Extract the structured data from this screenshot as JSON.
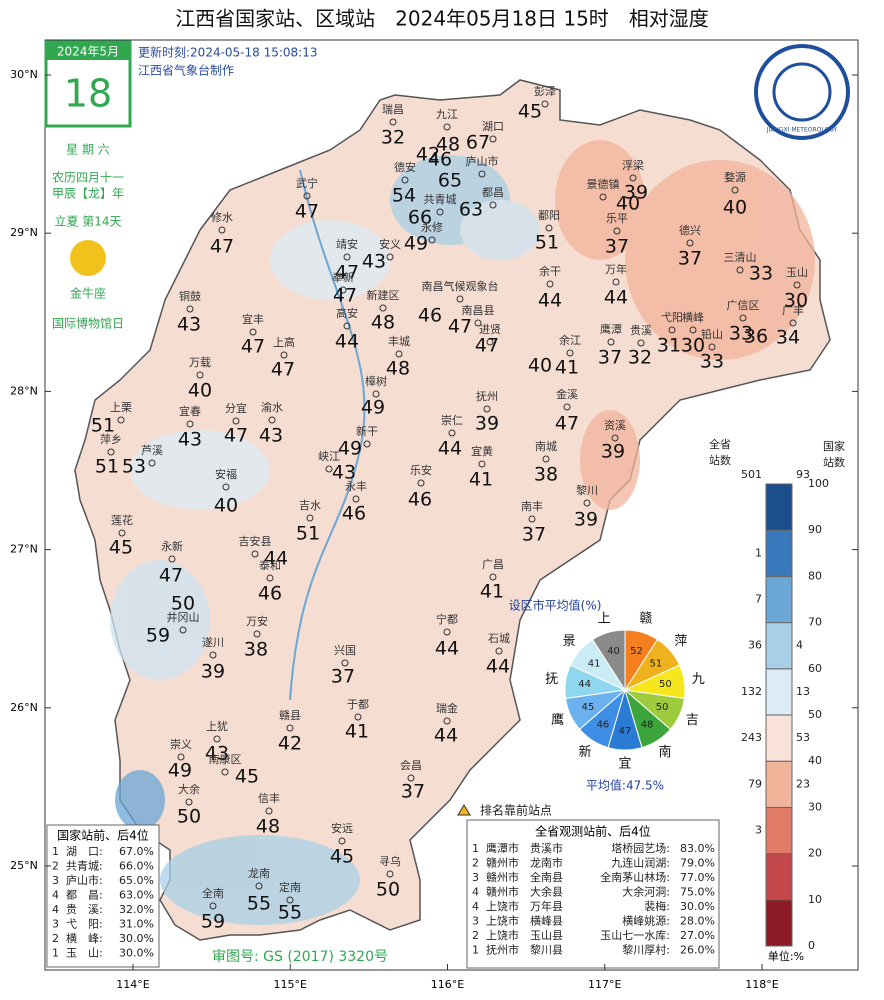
{
  "title": "江西省国家站、区域站　2024年05月18日 15时　相对湿度",
  "calendar": {
    "month": "2024年5月",
    "day": "18",
    "weekday": "星 期 六",
    "lunar": [
      "农历四月十一",
      "甲辰【龙】年"
    ],
    "solar_term": "立夏 第14天",
    "zodiac": "金牛座",
    "holiday": "国际博物馆日"
  },
  "update_time": "更新时刻:2024-05-18 15:08:13",
  "maker": "江西省气象台制作",
  "logo_text": "JIANGXI METEOROLOGY",
  "lat_ticks": [
    {
      "value": 30,
      "label": "30°N"
    },
    {
      "value": 29,
      "label": "29°N"
    },
    {
      "value": 28,
      "label": "28°N"
    },
    {
      "value": 27,
      "label": "27°N"
    },
    {
      "value": 26,
      "label": "26°N"
    },
    {
      "value": 25,
      "label": "25°N"
    }
  ],
  "lon_ticks": [
    {
      "value": 114,
      "label": "114°E"
    },
    {
      "value": 115,
      "label": "115°E"
    },
    {
      "value": 116,
      "label": "116°E"
    },
    {
      "value": 117,
      "label": "117°E"
    },
    {
      "value": 118,
      "label": "118°E"
    }
  ],
  "stations": [
    {
      "name": "彭泽",
      "value": 45
    },
    {
      "name": "瑞昌",
      "value": 32
    },
    {
      "name": "九江",
      "value": 48
    },
    {
      "name": "湖口",
      "value": 67
    },
    {
      "name": null,
      "value": 42
    },
    {
      "name": null,
      "value": 46
    },
    {
      "name": "庐山市",
      "value": 65
    },
    {
      "name": "德安",
      "value": 54
    },
    {
      "name": "都昌",
      "value": 63
    },
    {
      "name": "共青城",
      "value": 66
    },
    {
      "name": "永修",
      "value": 49
    },
    {
      "name": "武宁",
      "value": 47
    },
    {
      "name": "修水",
      "value": 47
    },
    {
      "name": "鄱阳",
      "value": 51
    },
    {
      "name": "景德镇",
      "value": 40
    },
    {
      "name": "浮梁",
      "value": 39
    },
    {
      "name": "乐平",
      "value": 37
    },
    {
      "name": "婺源",
      "value": 40
    },
    {
      "name": "德兴",
      "value": 37
    },
    {
      "name": "三清山",
      "value": 33
    },
    {
      "name": "玉山",
      "value": 30
    },
    {
      "name": "靖安",
      "value": 47
    },
    {
      "name": "安义",
      "value": 43
    },
    {
      "name": "奉新",
      "value": 47
    },
    {
      "name": "南昌气候观象台",
      "value": 46
    },
    {
      "name": "新建区",
      "value": 48
    },
    {
      "name": "高安",
      "value": 44
    },
    {
      "name": "南昌县",
      "value": 47
    },
    {
      "name": "进贤",
      "value": 47
    },
    {
      "name": "余干",
      "value": 44
    },
    {
      "name": "万年",
      "value": 44
    },
    {
      "name": "铜鼓",
      "value": 43
    },
    {
      "name": "宜丰",
      "value": 47
    },
    {
      "name": "上高",
      "value": 47
    },
    {
      "name": "丰城",
      "value": 48
    },
    {
      "name": "余江",
      "value": 41
    },
    {
      "name": null,
      "value": 40
    },
    {
      "name": "鹰潭",
      "value": 37
    },
    {
      "name": "贵溪",
      "value": 32
    },
    {
      "name": "弋阳",
      "value": 31
    },
    {
      "name": "横峰",
      "value": 30
    },
    {
      "name": "铅山",
      "value": 33
    },
    {
      "name": "广信区",
      "value": 33
    },
    {
      "name": null,
      "value": 36
    },
    {
      "name": "广丰",
      "value": 34
    },
    {
      "name": "万载",
      "value": 40
    },
    {
      "name": "樟树",
      "value": 49
    },
    {
      "name": "抚州",
      "value": 39
    },
    {
      "name": "金溪",
      "value": 47
    },
    {
      "name": "上栗",
      "value": 51
    },
    {
      "name": "宜春",
      "value": 43
    },
    {
      "name": "分宜",
      "value": 47
    },
    {
      "name": "渝水",
      "value": 43
    },
    {
      "name": "新干",
      "value": 49
    },
    {
      "name": "崇仁",
      "value": 44
    },
    {
      "name": "萍乡",
      "value": 51
    },
    {
      "name": "芦溪",
      "value": 53
    },
    {
      "name": "峡江",
      "value": 43
    },
    {
      "name": "资溪",
      "value": 39
    },
    {
      "name": "宜黄",
      "value": 41
    },
    {
      "name": "南城",
      "value": 38
    },
    {
      "name": "安福",
      "value": 40
    },
    {
      "name": "永丰",
      "value": 46
    },
    {
      "name": "乐安",
      "value": 46
    },
    {
      "name": "黎川",
      "value": 39
    },
    {
      "name": "吉水",
      "value": 51
    },
    {
      "name": "南丰",
      "value": 37
    },
    {
      "name": "莲花",
      "value": 45
    },
    {
      "name": "吉安县",
      "value": 44
    },
    {
      "name": "永新",
      "value": 47
    },
    {
      "name": "泰和",
      "value": 46
    },
    {
      "name": null,
      "value": 50
    },
    {
      "name": "井冈山",
      "value": 59
    },
    {
      "name": "广昌",
      "value": 41
    },
    {
      "name": "万安",
      "value": 38
    },
    {
      "name": "遂川",
      "value": 39
    },
    {
      "name": "宁都",
      "value": 44
    },
    {
      "name": "石城",
      "value": 44
    },
    {
      "name": "兴国",
      "value": 37
    },
    {
      "name": "于都",
      "value": 41
    },
    {
      "name": "瑞金",
      "value": 44
    },
    {
      "name": "赣县",
      "value": 42
    },
    {
      "name": "上犹",
      "value": 43
    },
    {
      "name": "崇义",
      "value": 49
    },
    {
      "name": "南康区",
      "value": 45
    },
    {
      "name": "会昌",
      "value": 37
    },
    {
      "name": "大余",
      "value": 50
    },
    {
      "name": "信丰",
      "value": 48
    },
    {
      "name": "安远",
      "value": 45
    },
    {
      "name": "寻乌",
      "value": 50
    },
    {
      "name": "龙南",
      "value": 55
    },
    {
      "name": "定南",
      "value": 55
    },
    {
      "name": "全南",
      "value": 59
    }
  ],
  "colorbar": {
    "levels": [
      0,
      10,
      20,
      30,
      40,
      50,
      60,
      70,
      80,
      90,
      100
    ],
    "colors": [
      "#8c1a24",
      "#c4474a",
      "#e07c66",
      "#f2b39b",
      "#f8e2da",
      "#dcebf4",
      "#a8cfe7",
      "#6aa6d6",
      "#3878bb",
      "#1b4e8c"
    ],
    "province_title": [
      "全省",
      "站数"
    ],
    "national_title": [
      "国家",
      "站数"
    ],
    "province_total": 501,
    "national_total": 93,
    "province_counts": [
      null,
      null,
      3,
      79,
      243,
      132,
      36,
      7,
      1,
      null
    ],
    "national_counts": [
      null,
      null,
      null,
      23,
      53,
      13,
      4,
      null,
      null,
      null
    ],
    "unit": "单位:%"
  },
  "pie": {
    "title": "设区市平均值(%)",
    "categories": [
      "赣",
      "萍",
      "九",
      "吉",
      "南",
      "宜",
      "新",
      "鹰",
      "抚",
      "景",
      "上"
    ],
    "values": [
      52,
      51,
      50,
      50,
      48,
      47,
      46,
      45,
      44,
      41,
      40
    ],
    "colors": [
      "#f7801e",
      "#efb21c",
      "#f6e61c",
      "#9ccb3b",
      "#3ca53b",
      "#2a7bd4",
      "#3e8ee6",
      "#6bb1f0",
      "#8fd6ef",
      "#c9ecf5",
      "#8a8a8a"
    ],
    "average": "平均值:47.5%"
  },
  "legend_rank": "排名靠前站点",
  "national_table": {
    "title": "国家站前、后4位",
    "rows": [
      [
        "1",
        "湖　口:",
        "67.0%"
      ],
      [
        "2",
        "共青城:",
        "66.0%"
      ],
      [
        "3",
        "庐山市:",
        "65.0%"
      ],
      [
        "4",
        "都　昌:",
        "63.0%"
      ],
      [
        "4",
        "贵　溪:",
        "32.0%"
      ],
      [
        "3",
        "弋　阳:",
        "31.0%"
      ],
      [
        "2",
        "横　峰:",
        "30.0%"
      ],
      [
        "1",
        "玉　山:",
        "30.0%"
      ]
    ]
  },
  "province_table": {
    "title": "全省观测站前、后4位",
    "rows": [
      [
        "1",
        "鹰潭市",
        "贵溪市",
        "塔桥园艺场:",
        "83.0%"
      ],
      [
        "2",
        "赣州市",
        "龙南市",
        "九连山润湖:",
        "79.0%"
      ],
      [
        "3",
        "赣州市",
        "全南县",
        "全南茅山林场:",
        "77.0%"
      ],
      [
        "4",
        "赣州市",
        "大余县",
        "大余河洞:",
        "75.0%"
      ],
      [
        "4",
        "上饶市",
        "万年县",
        "裴梅:",
        "30.0%"
      ],
      [
        "3",
        "上饶市",
        "横峰县",
        "横峰姚源:",
        "28.0%"
      ],
      [
        "2",
        "上饶市",
        "玉山县",
        "玉山七一水库:",
        "27.0%"
      ],
      [
        "1",
        "抚州市",
        "黎川县",
        "黎川厚村:",
        "26.0%"
      ]
    ]
  },
  "approval": "审图号: GS (2017) 3320号"
}
